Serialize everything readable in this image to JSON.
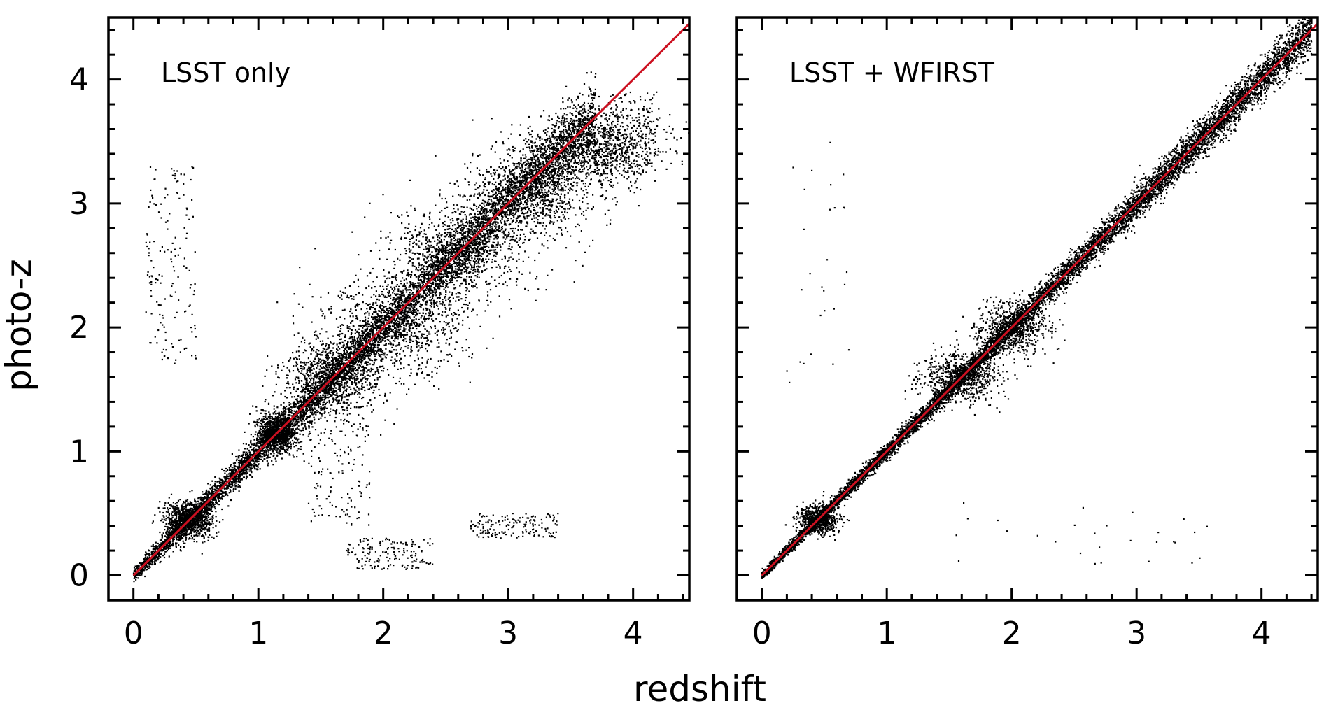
{
  "chart_data": [
    {
      "type": "scatter",
      "title": "",
      "annotation": "LSST only",
      "xlabel": "redshift",
      "ylabel": "photo-z",
      "xlim": [
        -0.2,
        4.45
      ],
      "ylim": [
        -0.2,
        4.5
      ],
      "xticks": [
        "0",
        "1",
        "2",
        "3",
        "4"
      ],
      "yticks": [
        "0",
        "1",
        "2",
        "3",
        "4"
      ],
      "reference_line": {
        "name": "photo-z = redshift",
        "color": "#cc1020",
        "from": [
          0,
          0
        ],
        "to": [
          4.45,
          4.45
        ]
      },
      "point_color": "#000000",
      "series": [
        {
          "component": "main-relation",
          "x_range": [
            0.0,
            3.7
          ],
          "scatter_sigma": 0.06,
          "approx_points": 7000
        },
        {
          "component": "cluster",
          "x": 0.45,
          "y": 0.45,
          "sx": 0.1,
          "sy": 0.08
        },
        {
          "component": "cluster",
          "x": 1.15,
          "y": 1.15,
          "sx": 0.08,
          "sy": 0.08
        },
        {
          "component": "cluster",
          "x": 1.6,
          "y": 1.6,
          "sx": 0.2,
          "sy": 0.15
        },
        {
          "component": "cluster",
          "x": 2.1,
          "y": 2.0,
          "sx": 0.3,
          "sy": 0.2
        },
        {
          "component": "cluster",
          "x": 2.6,
          "y": 2.6,
          "sx": 0.25,
          "sy": 0.2
        },
        {
          "component": "cluster",
          "x": 3.2,
          "y": 3.1,
          "sx": 0.25,
          "sy": 0.2
        },
        {
          "component": "cluster",
          "x": 3.75,
          "y": 3.45,
          "sx": 0.25,
          "sy": 0.15
        },
        {
          "component": "outlier-branch",
          "x_range": [
            0.1,
            0.5
          ],
          "y_range": [
            1.7,
            3.3
          ]
        },
        {
          "component": "outlier-branch",
          "x_range": [
            1.7,
            2.4
          ],
          "y_range": [
            0.05,
            0.3
          ]
        },
        {
          "component": "outlier-branch",
          "x_range": [
            2.7,
            3.4
          ],
          "y_range": [
            0.3,
            0.5
          ]
        },
        {
          "component": "outlier-branch",
          "x_range": [
            1.4,
            1.9
          ],
          "y_range": [
            0.4,
            1.4
          ]
        },
        {
          "component": "outlier-branch",
          "x_range": [
            3.8,
            4.2
          ],
          "y_range": [
            3.3,
            3.9
          ]
        }
      ]
    },
    {
      "type": "scatter",
      "title": "",
      "annotation": "LSST + WFIRST",
      "xlabel": "redshift",
      "ylabel": "photo-z",
      "xlim": [
        -0.2,
        4.45
      ],
      "ylim": [
        -0.2,
        4.5
      ],
      "xticks": [
        "0",
        "1",
        "2",
        "3",
        "4"
      ],
      "yticks": [],
      "reference_line": {
        "name": "photo-z = redshift",
        "color": "#cc1020",
        "from": [
          0,
          0
        ],
        "to": [
          4.45,
          4.45
        ]
      },
      "point_color": "#000000",
      "series": [
        {
          "component": "main-relation",
          "x_range": [
            0.0,
            4.4
          ],
          "scatter_sigma": 0.03,
          "approx_points": 9000
        },
        {
          "component": "cluster",
          "x": 0.45,
          "y": 0.45,
          "sx": 0.08,
          "sy": 0.06
        },
        {
          "component": "cluster",
          "x": 1.6,
          "y": 1.6,
          "sx": 0.15,
          "sy": 0.1
        },
        {
          "component": "cluster",
          "x": 2.0,
          "y": 2.0,
          "sx": 0.15,
          "sy": 0.1
        },
        {
          "component": "outlier-branch",
          "x_range": [
            0.2,
            0.7
          ],
          "y_range": [
            1.5,
            3.5
          ]
        },
        {
          "component": "outlier-branch",
          "x_range": [
            1.5,
            3.6
          ],
          "y_range": [
            0.05,
            0.6
          ]
        }
      ]
    }
  ],
  "labels": {
    "xlabel": "redshift",
    "ylabel": "photo-z",
    "panel_left": "LSST only",
    "panel_right": "LSST + WFIRST"
  }
}
